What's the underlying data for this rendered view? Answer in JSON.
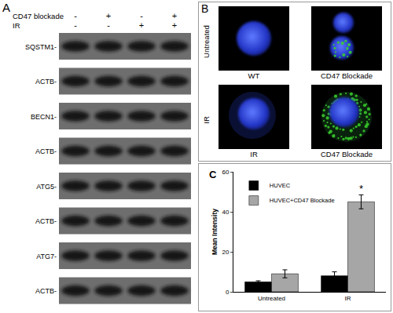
{
  "panels": {
    "A": {
      "label": "A",
      "conditions": [
        {
          "name": "CD47 blockade",
          "signs": [
            "-",
            "+",
            "-",
            "+"
          ]
        },
        {
          "name": "IR",
          "signs": [
            "-",
            "-",
            "+",
            "+"
          ]
        }
      ],
      "blots": [
        "SQSTM1-",
        "ACTB-",
        "BECN1-",
        "ACTB-",
        "ATG5-",
        "ACTB-",
        "ATG7-",
        "ACTB-"
      ]
    },
    "B": {
      "label": "B",
      "rows": [
        {
          "label": "Untreated",
          "captions": [
            "WT",
            "CD47 Blockade"
          ]
        },
        {
          "label": "IR",
          "captions": [
            "IR",
            "CD47 Blockade"
          ]
        }
      ]
    }
  },
  "chart_data": {
    "type": "bar",
    "panel_label": "C",
    "y_label": "Mean Intensity",
    "categories": [
      "Untreated",
      "IR"
    ],
    "series": [
      {
        "name": "HUVEC",
        "color": "#000000",
        "values": [
          5,
          8
        ],
        "errors": [
          0.5,
          2
        ]
      },
      {
        "name": "HUVEC+CD47 Blockade",
        "color": "#a6a6a6",
        "values": [
          9,
          45
        ],
        "errors": [
          2,
          3.5
        ]
      }
    ],
    "ylim": [
      0,
      60
    ],
    "yticks": [
      0,
      20,
      40,
      60
    ],
    "grid": false,
    "legend": "top-left",
    "annotations": [
      {
        "text": "*",
        "category": "IR",
        "series": "HUVEC+CD47 Blockade"
      }
    ]
  }
}
